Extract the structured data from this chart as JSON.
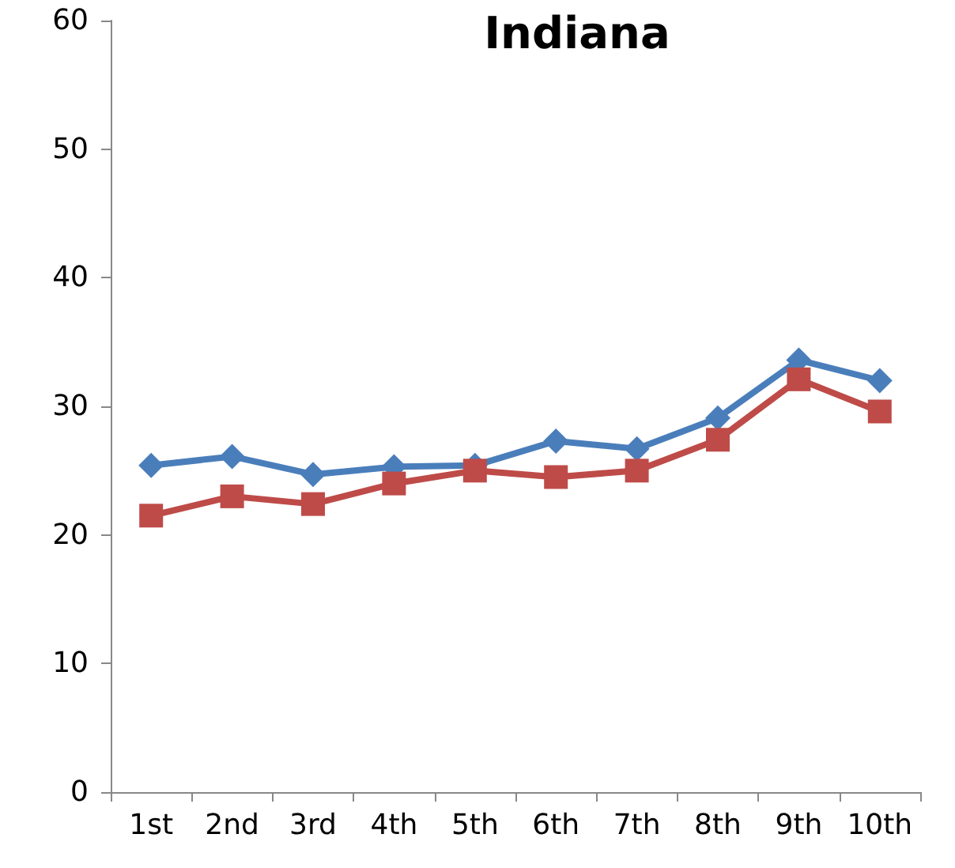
{
  "chart_data": {
    "type": "line",
    "title": "Indiana",
    "categories": [
      "1st",
      "2nd",
      "3rd",
      "4th",
      "5th",
      "6th",
      "7th",
      "8th",
      "9th",
      "10th"
    ],
    "series": [
      {
        "color": "#4a7ebb",
        "marker": "diamond",
        "values": [
          25.4,
          26.1,
          24.7,
          25.3,
          25.4,
          27.3,
          26.7,
          29.1,
          33.6,
          32.0
        ]
      },
      {
        "color": "#be4b48",
        "marker": "square",
        "values": [
          21.5,
          23.0,
          22.4,
          24.0,
          25.0,
          24.5,
          25.0,
          27.4,
          32.1,
          29.6
        ]
      }
    ],
    "ylim": [
      0,
      60
    ],
    "yticks": [
      0,
      10,
      20,
      30,
      40,
      50,
      60
    ],
    "grid": false,
    "line_style": "solid"
  }
}
